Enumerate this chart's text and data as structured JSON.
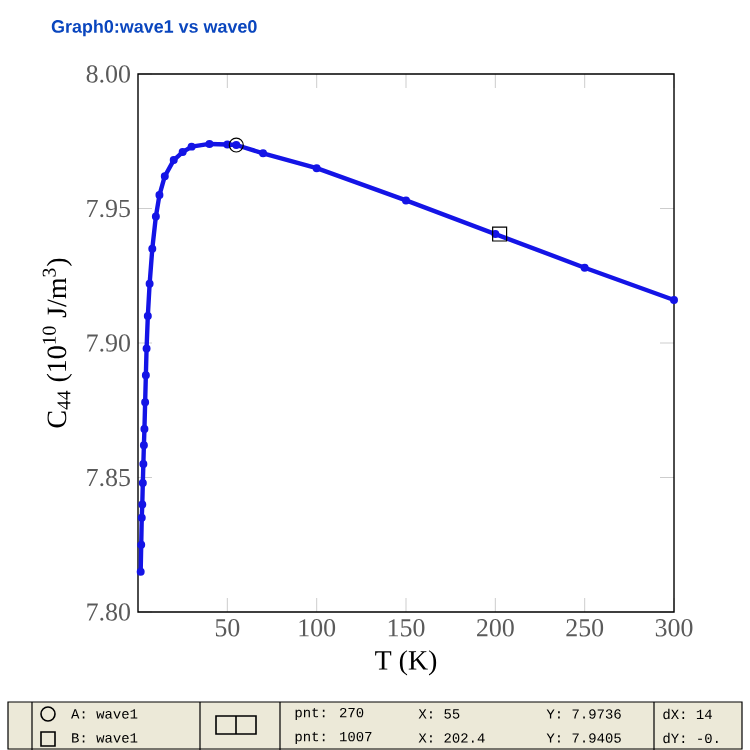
{
  "chart_data": {
    "type": "line",
    "title": "Graph0:wave1 vs wave0",
    "xlabel": "T (K)",
    "ylabel": "C$_{44}$ (10$^{10}$ J/m$^{3}$)",
    "xlim": [
      0,
      300
    ],
    "ylim": [
      7.8,
      8.0
    ],
    "xticks": [
      50,
      100,
      150,
      200,
      250,
      300
    ],
    "yticks": [
      {
        "value": 7.8,
        "label": "7.80"
      },
      {
        "value": 7.85,
        "label": "7.85"
      },
      {
        "value": 7.9,
        "label": "7.90"
      },
      {
        "value": 7.95,
        "label": "7.95"
      },
      {
        "value": 8.0,
        "label": "8.00"
      }
    ],
    "grid": false,
    "marker": "circle",
    "legend": "bottom left",
    "series": [
      {
        "color": "#1414e6",
        "x": [
          1.5,
          1.8,
          2.1,
          2.4,
          2.7,
          3,
          3.3,
          3.6,
          4,
          4.4,
          4.8,
          5.5,
          6.5,
          8,
          10,
          12,
          15,
          20,
          25,
          30,
          40,
          50,
          55,
          70,
          100,
          150,
          200,
          250,
          300
        ],
        "values": [
          7.815,
          7.825,
          7.835,
          7.84,
          7.848,
          7.855,
          7.862,
          7.868,
          7.878,
          7.888,
          7.898,
          7.91,
          7.922,
          7.935,
          7.947,
          7.955,
          7.962,
          7.968,
          7.971,
          7.973,
          7.974,
          7.9738,
          7.9736,
          7.9705,
          7.965,
          7.953,
          7.9405,
          7.928,
          7.916
        ]
      },
      {
        "name": "A: wave1",
        "type": "scatter",
        "marker": "circle",
        "color": "#000000",
        "x": [
          55
        ],
        "values": [
          7.9736
        ]
      },
      {
        "name": "B: wave1",
        "type": "scatter",
        "marker": "square",
        "color": "#000000",
        "x": [
          202.4
        ],
        "values": [
          7.9405
        ]
      }
    ],
    "annotations": [
      "pnt: 270",
      "X: 55",
      "Y: 7.9736",
      "dX: 14",
      "pnt: 1007",
      "X: 202.4",
      "Y: 7.9405",
      "dY: -0."
    ]
  }
}
